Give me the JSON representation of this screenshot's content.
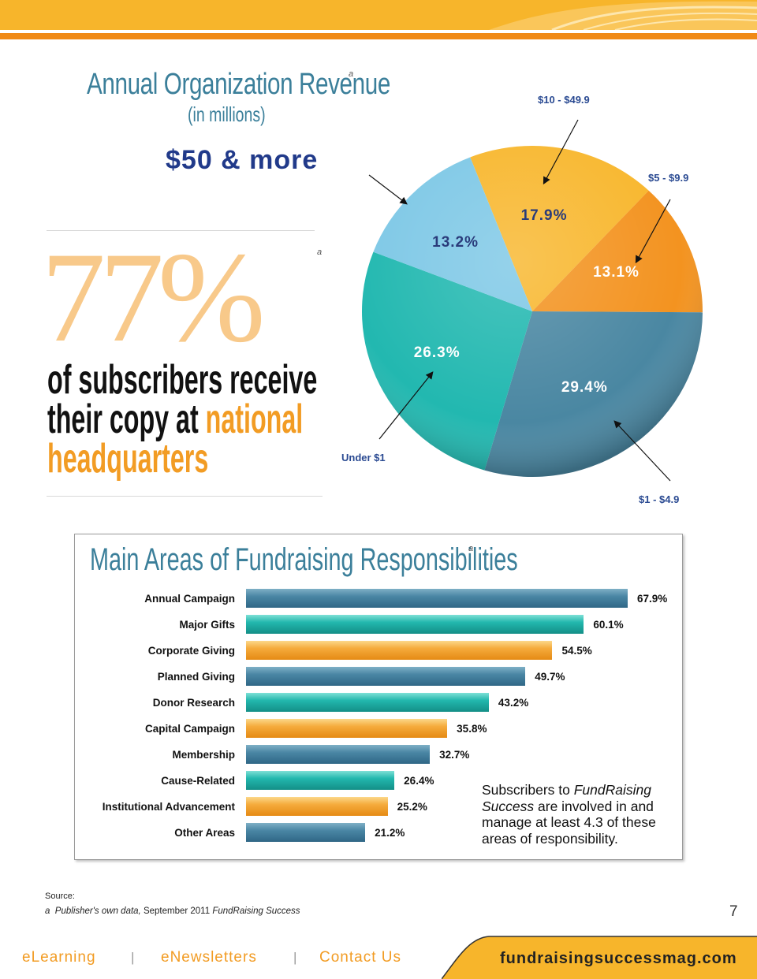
{
  "pie": {
    "title": "Annual Organization Revenue",
    "subtitle": "(in millions)",
    "superscript": "a",
    "highlight": "$50 & more",
    "labels": {
      "ten": "$10 - $49.9",
      "five": "$5 - $9.9",
      "under1": "Under $1",
      "one": "$1 - $4.9"
    }
  },
  "stat": {
    "number": "77%",
    "superscript": "a",
    "line1": "of subscribers receive",
    "line2a": "their copy at ",
    "line2b": "national",
    "line3": "headquarters"
  },
  "bars": {
    "title": "Main Areas of Fundraising Responsibilities",
    "superscript": "a",
    "note_a": "Subscribers to ",
    "note_italic": "FundRaising Success",
    "note_b": " are involved in and manage at least 4.3 of these areas of responsibility."
  },
  "chart_data": [
    {
      "type": "pie",
      "title": "Annual Organization Revenue",
      "subtitle": "(in millions)",
      "slices": [
        {
          "label": "$10 - $49.9",
          "value": 17.9,
          "display": "17.9%",
          "color": "#f8b72e"
        },
        {
          "label": "$5 - $9.9",
          "value": 13.1,
          "display": "13.1%",
          "color": "#f39320"
        },
        {
          "label": "$1 - $4.9",
          "value": 29.4,
          "display": "29.4%",
          "color": "#4a87a2"
        },
        {
          "label": "Under $1",
          "value": 26.3,
          "display": "26.3%",
          "color": "#22b8b0"
        },
        {
          "label": "$50 & more",
          "value": 13.2,
          "display": "13.2%",
          "color": "#7ec8e6"
        }
      ]
    },
    {
      "type": "bar",
      "orientation": "horizontal",
      "title": "Main Areas of Fundraising Responsibilities",
      "categories": [
        "Annual Campaign",
        "Major Gifts",
        "Corporate Giving",
        "Planned Giving",
        "Donor Research",
        "Capital Campaign",
        "Membership",
        "Cause-Related",
        "Institutional Advancement",
        "Other Areas"
      ],
      "values": [
        67.9,
        60.1,
        54.5,
        49.7,
        43.2,
        35.8,
        32.7,
        26.4,
        25.2,
        21.2
      ],
      "value_labels": [
        "67.9%",
        "60.1%",
        "54.5%",
        "49.7%",
        "43.2%",
        "35.8%",
        "32.7%",
        "26.4%",
        "25.2%",
        "21.2%"
      ],
      "colors": [
        "blue",
        "teal",
        "orange",
        "blue",
        "teal",
        "orange",
        "blue",
        "teal",
        "orange",
        "blue"
      ]
    }
  ],
  "footer": {
    "source_label": "Source:",
    "source_sup": "a",
    "source_italic": "Publisher's own data,",
    "source_mid": " September 2011 ",
    "source_pub": "FundRaising Success",
    "page_number": "7",
    "links": [
      "eLearning",
      "eNewsletters",
      "Contact Us"
    ],
    "separator": "|",
    "url": "fundraisingsuccessmag.com"
  }
}
